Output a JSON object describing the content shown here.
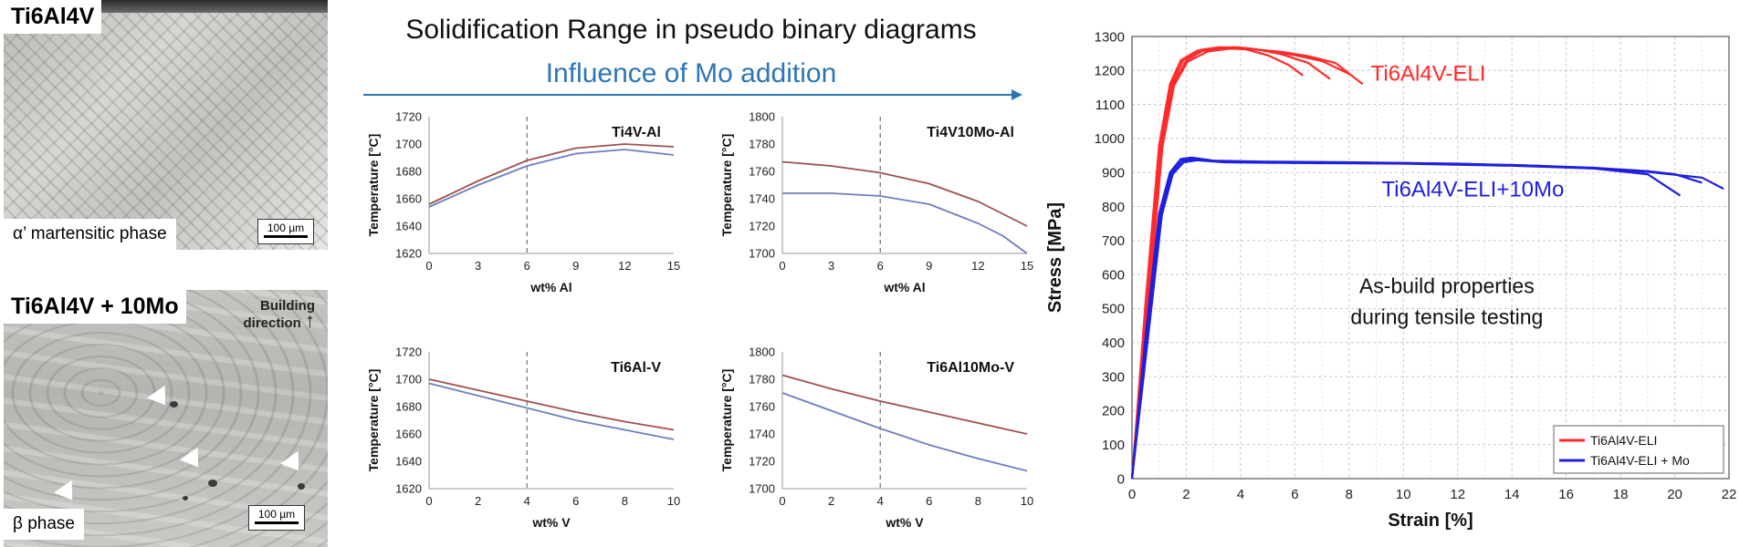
{
  "micrographs": {
    "top": {
      "label": "Ti6Al4V",
      "phase": "α’ martensitic phase",
      "scale": "100 µm"
    },
    "bottom": {
      "label": "Ti6Al4V + 10Mo",
      "phase": "β phase",
      "scale": "100 µm",
      "building_direction": "Building direction"
    }
  },
  "header": {
    "title": "Solidification Range in pseudo binary diagrams",
    "subtitle": "Influence of Mo addition",
    "accent_color": "#2e75b6"
  },
  "chart_data": [
    {
      "type": "line",
      "title": "Ti4V-Al",
      "xlabel": "wt% Al",
      "ylabel": "Temperature [°C]",
      "xlim": [
        0,
        15
      ],
      "ylim": [
        1620,
        1720
      ],
      "xticks": [
        0,
        3,
        6,
        9,
        12,
        15
      ],
      "yticks": [
        1620,
        1640,
        1660,
        1680,
        1700,
        1720
      ],
      "marker_x": 6,
      "series": [
        {
          "color": "#a0504e",
          "x": [
            0,
            3,
            6,
            9,
            12,
            15
          ],
          "y": [
            1656,
            1673,
            1688,
            1697,
            1700,
            1698
          ]
        },
        {
          "color": "#6d7fbf",
          "x": [
            0,
            3,
            6,
            9,
            12,
            15
          ],
          "y": [
            1654,
            1670,
            1684,
            1693,
            1696,
            1692
          ]
        }
      ]
    },
    {
      "type": "line",
      "title": "Ti4V10Mo-Al",
      "xlabel": "wt% Al",
      "ylabel": "Temperature [°C]",
      "xlim": [
        0,
        15
      ],
      "ylim": [
        1700,
        1800
      ],
      "xticks": [
        0,
        3,
        6,
        9,
        12,
        15
      ],
      "yticks": [
        1700,
        1720,
        1740,
        1760,
        1780,
        1800
      ],
      "marker_x": 6,
      "series": [
        {
          "color": "#a0504e",
          "x": [
            0,
            3,
            6,
            9,
            12,
            15
          ],
          "y": [
            1767,
            1764,
            1759,
            1751,
            1738,
            1720
          ]
        },
        {
          "color": "#6d7fbf",
          "x": [
            0,
            3,
            6,
            9,
            12,
            13.5,
            15
          ],
          "y": [
            1744,
            1744,
            1742,
            1736,
            1722,
            1713,
            1700
          ]
        }
      ]
    },
    {
      "type": "line",
      "title": "Ti6Al-V",
      "xlabel": "wt% V",
      "ylabel": "Temperature [°C]",
      "xlim": [
        0,
        10
      ],
      "ylim": [
        1620,
        1720
      ],
      "xticks": [
        0,
        2,
        4,
        6,
        8,
        10
      ],
      "yticks": [
        1620,
        1640,
        1660,
        1680,
        1700,
        1720
      ],
      "marker_x": 4,
      "series": [
        {
          "color": "#a0504e",
          "x": [
            0,
            2,
            4,
            6,
            8,
            10
          ],
          "y": [
            1700,
            1692,
            1684,
            1676,
            1669,
            1663
          ]
        },
        {
          "color": "#6d7fbf",
          "x": [
            0,
            2,
            4,
            6,
            8,
            10
          ],
          "y": [
            1697,
            1688,
            1679,
            1670,
            1663,
            1656
          ]
        }
      ]
    },
    {
      "type": "line",
      "title": "Ti6Al10Mo-V",
      "xlabel": "wt% V",
      "ylabel": "Temperature [°C]",
      "xlim": [
        0,
        10
      ],
      "ylim": [
        1700,
        1800
      ],
      "xticks": [
        0,
        2,
        4,
        6,
        8,
        10
      ],
      "yticks": [
        1700,
        1720,
        1740,
        1760,
        1780,
        1800
      ],
      "marker_x": 4,
      "series": [
        {
          "color": "#a0504e",
          "x": [
            0,
            2,
            4,
            6,
            8,
            10
          ],
          "y": [
            1783,
            1773,
            1764,
            1756,
            1748,
            1740
          ]
        },
        {
          "color": "#6d7fbf",
          "x": [
            0,
            2,
            4,
            6,
            8,
            10
          ],
          "y": [
            1770,
            1757,
            1744,
            1732,
            1722,
            1713
          ]
        }
      ]
    },
    {
      "type": "line",
      "title": "",
      "xlabel": "Strain [%]",
      "ylabel": "Stress [MPa]",
      "xlim": [
        0,
        22
      ],
      "ylim": [
        0,
        1300
      ],
      "xticks": [
        0,
        2,
        4,
        6,
        8,
        10,
        12,
        14,
        16,
        18,
        20,
        22
      ],
      "yticks": [
        0,
        100,
        200,
        300,
        400,
        500,
        600,
        700,
        800,
        900,
        1000,
        1100,
        1200,
        1300
      ],
      "grid": true,
      "legend_position": "bottom-right",
      "annotations": {
        "eli": "Ti6Al4V-ELI",
        "mo": "Ti6Al4V-ELI+10Mo",
        "center_line1": "As-build properties",
        "center_line2": "during tensile testing"
      },
      "series": [
        {
          "name": "Ti6Al4V-ELI",
          "color": "#ff2a2a",
          "lines": [
            {
              "x": [
                0,
                0.5,
                1.0,
                1.4,
                1.8,
                2.4,
                3.0,
                3.6,
                4.2,
                5.0,
                5.8,
                6.3
              ],
              "y": [
                0,
                520,
                980,
                1160,
                1230,
                1258,
                1265,
                1266,
                1262,
                1245,
                1215,
                1185
              ]
            },
            {
              "x": [
                0,
                0.55,
                1.05,
                1.45,
                1.9,
                2.5,
                3.2,
                3.9,
                4.6,
                5.5,
                6.5,
                7.3
              ],
              "y": [
                0,
                520,
                980,
                1160,
                1232,
                1260,
                1268,
                1268,
                1262,
                1248,
                1222,
                1175
              ]
            },
            {
              "x": [
                0,
                0.6,
                1.1,
                1.5,
                2.0,
                2.6,
                3.4,
                4.2,
                5.0,
                6.0,
                7.0,
                8.0
              ],
              "y": [
                0,
                520,
                980,
                1158,
                1230,
                1258,
                1266,
                1266,
                1258,
                1245,
                1228,
                1190
              ]
            },
            {
              "x": [
                0,
                0.62,
                1.12,
                1.55,
                2.05,
                2.8,
                3.6,
                4.5,
                5.5,
                6.5,
                7.5,
                8.5
              ],
              "y": [
                0,
                520,
                975,
                1156,
                1226,
                1256,
                1264,
                1262,
                1255,
                1242,
                1222,
                1160
              ]
            }
          ]
        },
        {
          "name": "Ti6Al4V-ELI + Mo",
          "color": "#1f1fe0",
          "lines": [
            {
              "x": [
                0,
                0.5,
                1.0,
                1.4,
                1.8,
                2.2,
                3.0,
                5.0,
                8.0,
                12.0,
                15.0,
                17.0,
                19.0,
                20.2
              ],
              "y": [
                0,
                420,
                780,
                900,
                940,
                944,
                935,
                932,
                930,
                926,
                920,
                912,
                895,
                832
              ]
            },
            {
              "x": [
                0,
                0.55,
                1.05,
                1.45,
                1.85,
                2.3,
                3.2,
                6.0,
                10.0,
                14.0,
                17.0,
                19.0,
                20.0,
                21.0
              ],
              "y": [
                0,
                420,
                780,
                898,
                935,
                940,
                933,
                930,
                928,
                922,
                914,
                904,
                895,
                870
              ]
            },
            {
              "x": [
                0,
                0.6,
                1.1,
                1.5,
                1.9,
                2.4,
                3.4,
                6.0,
                10.0,
                14.0,
                17.0,
                19.0,
                21.0,
                21.8
              ],
              "y": [
                0,
                420,
                775,
                895,
                930,
                936,
                930,
                928,
                926,
                920,
                912,
                902,
                885,
                852
              ]
            }
          ]
        }
      ]
    }
  ]
}
